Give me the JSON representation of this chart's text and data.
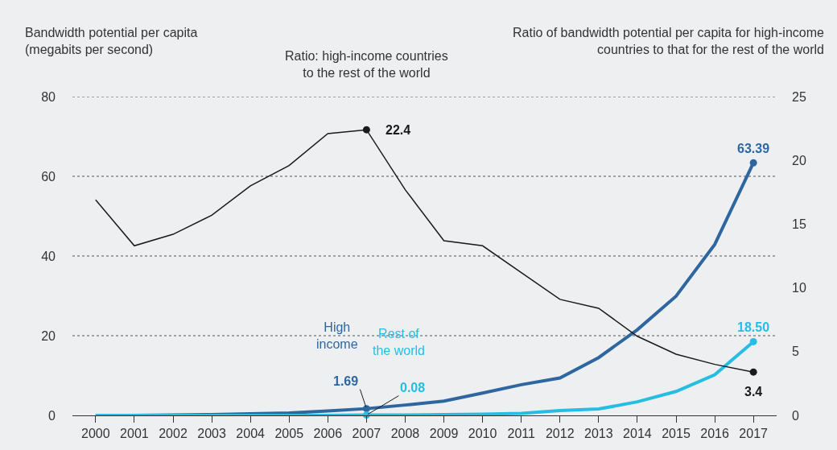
{
  "chart_data": {
    "type": "line",
    "ylabel": "Bandwidth potential per capita (megabits per second)",
    "y2label": "Ratio of bandwidth potential per capita for high-income countries to that for the rest of the world",
    "categories": [
      "2000",
      "2001",
      "2002",
      "2003",
      "2004",
      "2005",
      "2006",
      "2007",
      "2008",
      "2009",
      "2010",
      "2011",
      "2012",
      "2013",
      "2014",
      "2015",
      "2016",
      "2017"
    ],
    "series": [
      {
        "name": "Ratio: high-income countries to the rest of the world",
        "color": "#1a1a1a",
        "axis": "y2",
        "values": [
          16.9,
          13.3,
          14.2,
          15.7,
          18.0,
          19.6,
          22.1,
          22.4,
          17.7,
          13.7,
          13.3,
          11.2,
          9.1,
          8.4,
          6.2,
          4.8,
          4.0,
          3.4
        ],
        "value_labels": [
          null,
          null,
          null,
          null,
          null,
          null,
          null,
          "22.4",
          null,
          null,
          null,
          null,
          null,
          null,
          null,
          null,
          null,
          "3.4"
        ]
      },
      {
        "name": "High income",
        "color": "#2e67a0",
        "values": [
          0,
          0,
          0.1,
          0.2,
          0.4,
          0.6,
          1.1,
          1.69,
          2.6,
          3.6,
          5.6,
          7.7,
          9.4,
          14.5,
          21.5,
          29.9,
          42.9,
          63.39
        ],
        "value_labels": [
          null,
          null,
          null,
          null,
          null,
          null,
          null,
          "1.69",
          null,
          null,
          null,
          null,
          null,
          null,
          null,
          null,
          null,
          "63.39"
        ]
      },
      {
        "name": "Rest of the world",
        "color": "#26bde2",
        "values": [
          0,
          0,
          0,
          0,
          0,
          0,
          0,
          0.08,
          0.1,
          0.2,
          0.3,
          0.5,
          1.2,
          1.6,
          3.4,
          6.0,
          10.2,
          18.5
        ],
        "value_labels": [
          null,
          null,
          null,
          null,
          null,
          null,
          null,
          "0.08",
          null,
          null,
          null,
          null,
          null,
          null,
          null,
          null,
          null,
          "18.50"
        ]
      }
    ],
    "ylim": [
      0,
      80
    ],
    "yticks": [
      0,
      20,
      40,
      60,
      80
    ],
    "y2lim": [
      0,
      25
    ],
    "y2ticks": [
      0,
      5,
      10,
      15,
      20,
      25
    ],
    "grid": "y",
    "legend": false
  }
}
